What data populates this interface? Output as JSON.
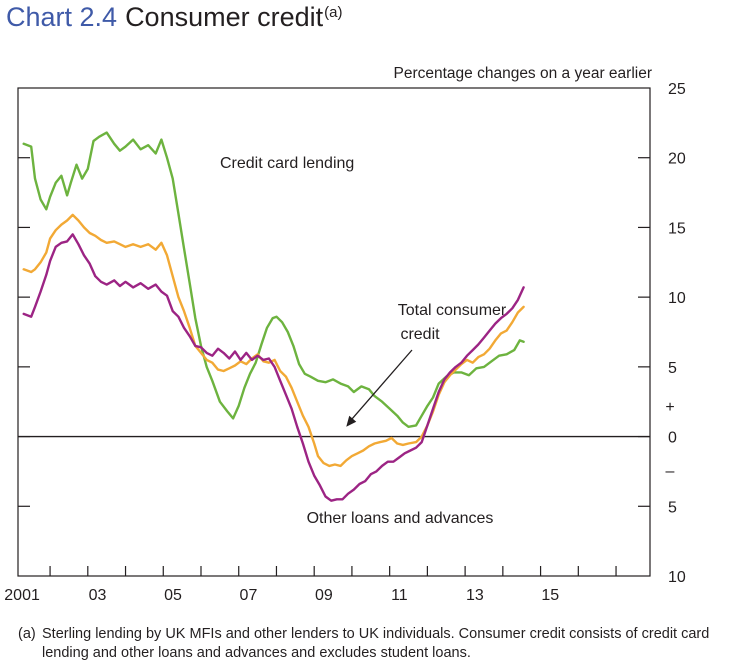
{
  "title": {
    "number": "Chart 2.4",
    "text": "Consumer credit",
    "footnote_marker": "(a)"
  },
  "footnote": {
    "marker": "(a)",
    "text": "Sterling lending by UK MFIs and other lenders to UK individuals.  Consumer credit consists of credit card lending and other loans and advances and excludes student loans."
  },
  "chart_data": {
    "type": "line",
    "title": "Consumer credit",
    "ylabel": "Percentage changes on a year earlier",
    "ylim": [
      -10,
      25
    ],
    "xlim": [
      2000.15,
      2016.9
    ],
    "grid": false,
    "yticks": [
      {
        "value": 25,
        "label": "25"
      },
      {
        "value": 20,
        "label": "20"
      },
      {
        "value": 15,
        "label": "15"
      },
      {
        "value": 10,
        "label": "10"
      },
      {
        "value": 5,
        "label": "5"
      },
      {
        "value": 0,
        "label": "0"
      },
      {
        "value": -5,
        "label": "5"
      },
      {
        "value": -10,
        "label": "10"
      }
    ],
    "sign_markers": {
      "plus": "+",
      "minus": "–"
    },
    "xticks": [
      2001,
      2002,
      2003,
      2004,
      2005,
      2006,
      2007,
      2008,
      2009,
      2010,
      2011,
      2012,
      2013,
      2014,
      2015,
      2016
    ],
    "xticklabels": [
      {
        "x": 2001,
        "label": "2001"
      },
      {
        "x": 2003,
        "label": "03"
      },
      {
        "x": 2005,
        "label": "05"
      },
      {
        "x": 2007,
        "label": "07"
      },
      {
        "x": 2009,
        "label": "09"
      },
      {
        "x": 2011,
        "label": "11"
      },
      {
        "x": 2013,
        "label": "13"
      },
      {
        "x": 2015,
        "label": "15"
      }
    ],
    "annotations": [
      {
        "text": "Credit card lending",
        "series": "Credit card lending"
      },
      {
        "text": "Total consumer credit",
        "lines": [
          "Total consumer",
          "credit"
        ],
        "series": "Total consumer credit",
        "arrow_to": [
          2008.85,
          0.7
        ]
      },
      {
        "text": "Other loans and advances",
        "series": "Other loans and advances"
      }
    ],
    "series": [
      {
        "name": "Credit card lending",
        "color": "#6db33f",
        "points": [
          [
            2000.3,
            21.0
          ],
          [
            2000.5,
            20.8
          ],
          [
            2000.6,
            18.5
          ],
          [
            2000.75,
            17.0
          ],
          [
            2000.9,
            16.3
          ],
          [
            2001.0,
            17.2
          ],
          [
            2001.15,
            18.2
          ],
          [
            2001.3,
            18.7
          ],
          [
            2001.45,
            17.3
          ],
          [
            2001.55,
            18.2
          ],
          [
            2001.7,
            19.5
          ],
          [
            2001.85,
            18.5
          ],
          [
            2002.0,
            19.2
          ],
          [
            2002.15,
            21.2
          ],
          [
            2002.3,
            21.5
          ],
          [
            2002.5,
            21.8
          ],
          [
            2002.7,
            21.0
          ],
          [
            2002.85,
            20.5
          ],
          [
            2003.0,
            20.8
          ],
          [
            2003.2,
            21.3
          ],
          [
            2003.4,
            20.6
          ],
          [
            2003.6,
            20.9
          ],
          [
            2003.8,
            20.3
          ],
          [
            2003.95,
            21.3
          ],
          [
            2004.1,
            20.0
          ],
          [
            2004.25,
            18.5
          ],
          [
            2004.4,
            16.0
          ],
          [
            2004.55,
            13.5
          ],
          [
            2004.7,
            11.0
          ],
          [
            2004.85,
            8.5
          ],
          [
            2005.0,
            6.5
          ],
          [
            2005.15,
            5.0
          ],
          [
            2005.3,
            4.0
          ],
          [
            2005.5,
            2.5
          ],
          [
            2005.7,
            1.8
          ],
          [
            2005.85,
            1.3
          ],
          [
            2006.0,
            2.2
          ],
          [
            2006.15,
            3.5
          ],
          [
            2006.3,
            4.5
          ],
          [
            2006.45,
            5.3
          ],
          [
            2006.6,
            6.6
          ],
          [
            2006.75,
            7.8
          ],
          [
            2006.9,
            8.5
          ],
          [
            2007.0,
            8.6
          ],
          [
            2007.15,
            8.2
          ],
          [
            2007.3,
            7.5
          ],
          [
            2007.45,
            6.5
          ],
          [
            2007.6,
            5.2
          ],
          [
            2007.75,
            4.5
          ],
          [
            2007.9,
            4.3
          ],
          [
            2008.1,
            4.0
          ],
          [
            2008.3,
            3.9
          ],
          [
            2008.5,
            4.1
          ],
          [
            2008.7,
            3.8
          ],
          [
            2008.9,
            3.6
          ],
          [
            2009.05,
            3.2
          ],
          [
            2009.25,
            3.6
          ],
          [
            2009.45,
            3.4
          ],
          [
            2009.6,
            2.9
          ],
          [
            2009.8,
            2.5
          ],
          [
            2010.0,
            2.0
          ],
          [
            2010.2,
            1.5
          ],
          [
            2010.35,
            1.0
          ],
          [
            2010.5,
            0.7
          ],
          [
            2010.7,
            0.8
          ],
          [
            2010.85,
            1.5
          ],
          [
            2011.0,
            2.2
          ],
          [
            2011.15,
            2.8
          ],
          [
            2011.3,
            3.8
          ],
          [
            2011.5,
            4.3
          ],
          [
            2011.7,
            4.6
          ],
          [
            2011.9,
            4.6
          ],
          [
            2012.1,
            4.4
          ],
          [
            2012.3,
            4.9
          ],
          [
            2012.5,
            5.0
          ],
          [
            2012.7,
            5.4
          ],
          [
            2012.9,
            5.8
          ],
          [
            2013.1,
            5.9
          ],
          [
            2013.3,
            6.2
          ],
          [
            2013.45,
            6.9
          ],
          [
            2013.55,
            6.8
          ]
        ]
      },
      {
        "name": "Total consumer credit",
        "color": "#f2a935",
        "points": [
          [
            2000.3,
            12.0
          ],
          [
            2000.5,
            11.8
          ],
          [
            2000.6,
            12.0
          ],
          [
            2000.75,
            12.5
          ],
          [
            2000.9,
            13.2
          ],
          [
            2001.0,
            14.2
          ],
          [
            2001.15,
            14.8
          ],
          [
            2001.3,
            15.2
          ],
          [
            2001.45,
            15.5
          ],
          [
            2001.6,
            15.9
          ],
          [
            2001.75,
            15.5
          ],
          [
            2001.9,
            15.0
          ],
          [
            2002.05,
            14.6
          ],
          [
            2002.2,
            14.4
          ],
          [
            2002.35,
            14.1
          ],
          [
            2002.5,
            13.9
          ],
          [
            2002.7,
            14.0
          ],
          [
            2002.85,
            13.8
          ],
          [
            2003.0,
            13.6
          ],
          [
            2003.2,
            13.8
          ],
          [
            2003.4,
            13.6
          ],
          [
            2003.6,
            13.8
          ],
          [
            2003.8,
            13.4
          ],
          [
            2003.95,
            13.9
          ],
          [
            2004.1,
            13.0
          ],
          [
            2004.25,
            11.5
          ],
          [
            2004.4,
            10.0
          ],
          [
            2004.55,
            9.0
          ],
          [
            2004.7,
            7.8
          ],
          [
            2004.85,
            6.5
          ],
          [
            2005.0,
            6.0
          ],
          [
            2005.15,
            5.5
          ],
          [
            2005.3,
            5.3
          ],
          [
            2005.45,
            4.8
          ],
          [
            2005.6,
            4.7
          ],
          [
            2005.75,
            4.9
          ],
          [
            2005.9,
            5.1
          ],
          [
            2006.05,
            5.4
          ],
          [
            2006.2,
            5.2
          ],
          [
            2006.35,
            5.6
          ],
          [
            2006.5,
            5.9
          ],
          [
            2006.65,
            5.4
          ],
          [
            2006.8,
            5.3
          ],
          [
            2006.95,
            5.5
          ],
          [
            2007.1,
            4.7
          ],
          [
            2007.25,
            4.3
          ],
          [
            2007.4,
            3.5
          ],
          [
            2007.55,
            2.5
          ],
          [
            2007.7,
            1.5
          ],
          [
            2007.85,
            0.7
          ],
          [
            2008.0,
            -0.5
          ],
          [
            2008.1,
            -1.4
          ],
          [
            2008.25,
            -1.9
          ],
          [
            2008.4,
            -2.1
          ],
          [
            2008.55,
            -2.0
          ],
          [
            2008.7,
            -2.1
          ],
          [
            2008.85,
            -1.7
          ],
          [
            2009.0,
            -1.4
          ],
          [
            2009.15,
            -1.2
          ],
          [
            2009.3,
            -1.0
          ],
          [
            2009.45,
            -0.7
          ],
          [
            2009.6,
            -0.5
          ],
          [
            2009.75,
            -0.4
          ],
          [
            2009.9,
            -0.3
          ],
          [
            2010.05,
            -0.1
          ],
          [
            2010.2,
            -0.5
          ],
          [
            2010.35,
            -0.6
          ],
          [
            2010.5,
            -0.5
          ],
          [
            2010.7,
            -0.4
          ],
          [
            2010.85,
            0.0
          ],
          [
            2011.0,
            0.8
          ],
          [
            2011.15,
            1.8
          ],
          [
            2011.3,
            3.0
          ],
          [
            2011.45,
            3.9
          ],
          [
            2011.6,
            4.4
          ],
          [
            2011.75,
            4.8
          ],
          [
            2011.9,
            5.2
          ],
          [
            2012.05,
            5.5
          ],
          [
            2012.2,
            5.3
          ],
          [
            2012.35,
            5.7
          ],
          [
            2012.5,
            5.9
          ],
          [
            2012.65,
            6.3
          ],
          [
            2012.8,
            6.9
          ],
          [
            2012.95,
            7.4
          ],
          [
            2013.1,
            7.6
          ],
          [
            2013.25,
            8.2
          ],
          [
            2013.4,
            8.9
          ],
          [
            2013.55,
            9.3
          ]
        ]
      },
      {
        "name": "Other loans and advances",
        "color": "#9c2484",
        "points": [
          [
            2000.3,
            8.8
          ],
          [
            2000.5,
            8.6
          ],
          [
            2000.6,
            9.3
          ],
          [
            2000.75,
            10.4
          ],
          [
            2000.9,
            11.6
          ],
          [
            2001.0,
            12.6
          ],
          [
            2001.15,
            13.6
          ],
          [
            2001.3,
            13.9
          ],
          [
            2001.45,
            14.0
          ],
          [
            2001.6,
            14.5
          ],
          [
            2001.75,
            13.8
          ],
          [
            2001.9,
            13.0
          ],
          [
            2002.05,
            12.4
          ],
          [
            2002.2,
            11.5
          ],
          [
            2002.35,
            11.1
          ],
          [
            2002.5,
            10.9
          ],
          [
            2002.7,
            11.2
          ],
          [
            2002.85,
            10.8
          ],
          [
            2003.0,
            11.1
          ],
          [
            2003.2,
            10.7
          ],
          [
            2003.4,
            11.0
          ],
          [
            2003.6,
            10.6
          ],
          [
            2003.8,
            10.9
          ],
          [
            2003.95,
            10.4
          ],
          [
            2004.1,
            10.1
          ],
          [
            2004.25,
            9.0
          ],
          [
            2004.4,
            8.6
          ],
          [
            2004.55,
            7.8
          ],
          [
            2004.7,
            7.2
          ],
          [
            2004.85,
            6.5
          ],
          [
            2005.0,
            6.4
          ],
          [
            2005.15,
            6.0
          ],
          [
            2005.3,
            5.8
          ],
          [
            2005.45,
            6.3
          ],
          [
            2005.6,
            6.0
          ],
          [
            2005.75,
            5.6
          ],
          [
            2005.9,
            6.1
          ],
          [
            2006.05,
            5.5
          ],
          [
            2006.2,
            6.0
          ],
          [
            2006.35,
            5.5
          ],
          [
            2006.5,
            5.8
          ],
          [
            2006.65,
            5.5
          ],
          [
            2006.8,
            5.6
          ],
          [
            2006.95,
            5.0
          ],
          [
            2007.1,
            4.0
          ],
          [
            2007.25,
            3.0
          ],
          [
            2007.4,
            2.0
          ],
          [
            2007.55,
            0.7
          ],
          [
            2007.7,
            -0.5
          ],
          [
            2007.85,
            -1.8
          ],
          [
            2008.0,
            -2.8
          ],
          [
            2008.15,
            -3.5
          ],
          [
            2008.3,
            -4.3
          ],
          [
            2008.45,
            -4.6
          ],
          [
            2008.6,
            -4.5
          ],
          [
            2008.75,
            -4.5
          ],
          [
            2008.9,
            -4.1
          ],
          [
            2009.05,
            -3.8
          ],
          [
            2009.2,
            -3.4
          ],
          [
            2009.35,
            -3.2
          ],
          [
            2009.5,
            -2.7
          ],
          [
            2009.65,
            -2.5
          ],
          [
            2009.8,
            -2.1
          ],
          [
            2009.95,
            -1.8
          ],
          [
            2010.1,
            -1.8
          ],
          [
            2010.25,
            -1.5
          ],
          [
            2010.4,
            -1.2
          ],
          [
            2010.55,
            -1.0
          ],
          [
            2010.7,
            -0.8
          ],
          [
            2010.85,
            -0.4
          ],
          [
            2011.0,
            0.8
          ],
          [
            2011.15,
            2.0
          ],
          [
            2011.3,
            3.2
          ],
          [
            2011.45,
            4.1
          ],
          [
            2011.6,
            4.6
          ],
          [
            2011.75,
            5.0
          ],
          [
            2011.9,
            5.3
          ],
          [
            2012.05,
            5.8
          ],
          [
            2012.2,
            6.2
          ],
          [
            2012.35,
            6.6
          ],
          [
            2012.5,
            7.1
          ],
          [
            2012.65,
            7.6
          ],
          [
            2012.8,
            8.1
          ],
          [
            2012.95,
            8.5
          ],
          [
            2013.1,
            8.8
          ],
          [
            2013.25,
            9.2
          ],
          [
            2013.4,
            9.8
          ],
          [
            2013.55,
            10.7
          ]
        ]
      }
    ]
  }
}
